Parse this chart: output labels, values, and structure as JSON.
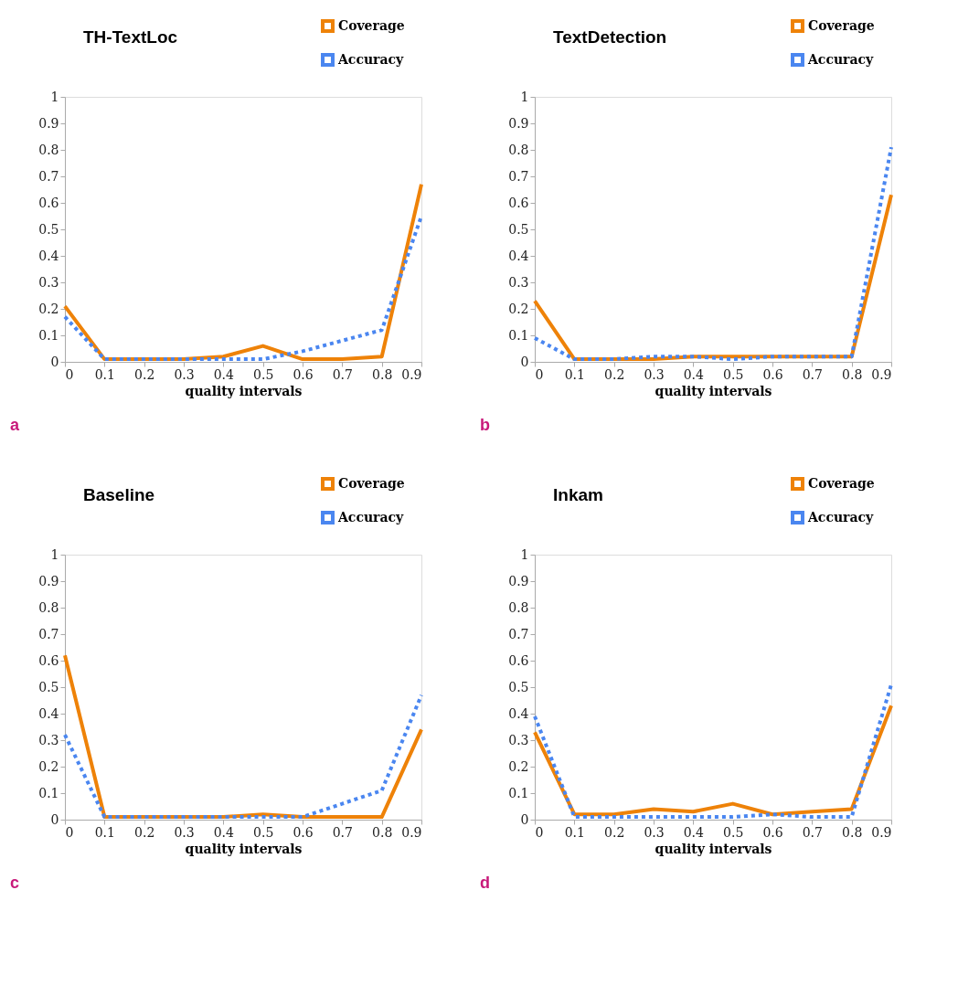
{
  "chart_data": [
    {
      "type": "line",
      "title": "TH-TextLoc",
      "xlabel": "quality intervals",
      "annotations": [
        "a"
      ],
      "categories": [
        "0",
        "0.1",
        "0.2",
        "0.3",
        "0.4",
        "0.5",
        "0.6",
        "0.7",
        "0.8",
        "0.9"
      ],
      "ylim": [
        0,
        1
      ],
      "yticks": [
        0,
        0.1,
        0.2,
        0.3,
        0.4,
        0.5,
        0.6,
        0.7,
        0.8,
        0.9,
        1
      ],
      "grid": false,
      "legend": "top right",
      "series": [
        {
          "name": "Coverage",
          "color": "#ee8208",
          "line_style": "solid",
          "values": [
            0.21,
            0.01,
            0.01,
            0.01,
            0.02,
            0.06,
            0.01,
            0.01,
            0.02,
            0.67
          ]
        },
        {
          "name": "Accuracy",
          "color": "#4a86f0",
          "line_style": "dotted",
          "values": [
            0.17,
            0.01,
            0.01,
            0.01,
            0.01,
            0.01,
            0.04,
            0.08,
            0.12,
            0.55
          ]
        }
      ]
    },
    {
      "type": "line",
      "title": "TextDetection",
      "xlabel": "quality intervals",
      "annotations": [
        "b"
      ],
      "categories": [
        "0",
        "0.1",
        "0.2",
        "0.3",
        "0.4",
        "0.5",
        "0.6",
        "0.7",
        "0.8",
        "0.9"
      ],
      "ylim": [
        0,
        1
      ],
      "yticks": [
        0,
        0.1,
        0.2,
        0.3,
        0.4,
        0.5,
        0.6,
        0.7,
        0.8,
        0.9,
        1
      ],
      "grid": false,
      "legend": "top right",
      "series": [
        {
          "name": "Coverage",
          "color": "#ee8208",
          "line_style": "solid",
          "values": [
            0.23,
            0.01,
            0.01,
            0.01,
            0.02,
            0.02,
            0.02,
            0.02,
            0.02,
            0.63
          ]
        },
        {
          "name": "Accuracy",
          "color": "#4a86f0",
          "line_style": "dotted",
          "values": [
            0.09,
            0.01,
            0.01,
            0.02,
            0.02,
            0.01,
            0.02,
            0.02,
            0.02,
            0.81
          ]
        }
      ]
    },
    {
      "type": "line",
      "title": "Baseline",
      "xlabel": "quality intervals",
      "annotations": [
        "c"
      ],
      "categories": [
        "0",
        "0.1",
        "0.2",
        "0.3",
        "0.4",
        "0.5",
        "0.6",
        "0.7",
        "0.8",
        "0.9"
      ],
      "ylim": [
        0,
        1
      ],
      "yticks": [
        0,
        0.1,
        0.2,
        0.3,
        0.4,
        0.5,
        0.6,
        0.7,
        0.8,
        0.9,
        1
      ],
      "grid": false,
      "legend": "top right",
      "series": [
        {
          "name": "Coverage",
          "color": "#ee8208",
          "line_style": "solid",
          "values": [
            0.62,
            0.01,
            0.01,
            0.01,
            0.01,
            0.02,
            0.01,
            0.01,
            0.01,
            0.34
          ]
        },
        {
          "name": "Accuracy",
          "color": "#4a86f0",
          "line_style": "dotted",
          "values": [
            0.32,
            0.01,
            0.01,
            0.01,
            0.01,
            0.01,
            0.01,
            0.06,
            0.11,
            0.47
          ]
        }
      ]
    },
    {
      "type": "line",
      "title": "Inkam",
      "xlabel": "quality intervals",
      "annotations": [
        "d"
      ],
      "categories": [
        "0",
        "0.1",
        "0.2",
        "0.3",
        "0.4",
        "0.5",
        "0.6",
        "0.7",
        "0.8",
        "0.9"
      ],
      "ylim": [
        0,
        1
      ],
      "yticks": [
        0,
        0.1,
        0.2,
        0.3,
        0.4,
        0.5,
        0.6,
        0.7,
        0.8,
        0.9,
        1
      ],
      "grid": false,
      "legend": "top right",
      "series": [
        {
          "name": "Coverage",
          "color": "#ee8208",
          "line_style": "solid",
          "values": [
            0.33,
            0.02,
            0.02,
            0.04,
            0.03,
            0.06,
            0.02,
            0.03,
            0.04,
            0.43
          ]
        },
        {
          "name": "Accuracy",
          "color": "#4a86f0",
          "line_style": "dotted",
          "values": [
            0.39,
            0.01,
            0.01,
            0.01,
            0.01,
            0.01,
            0.02,
            0.01,
            0.01,
            0.51
          ]
        }
      ]
    }
  ]
}
